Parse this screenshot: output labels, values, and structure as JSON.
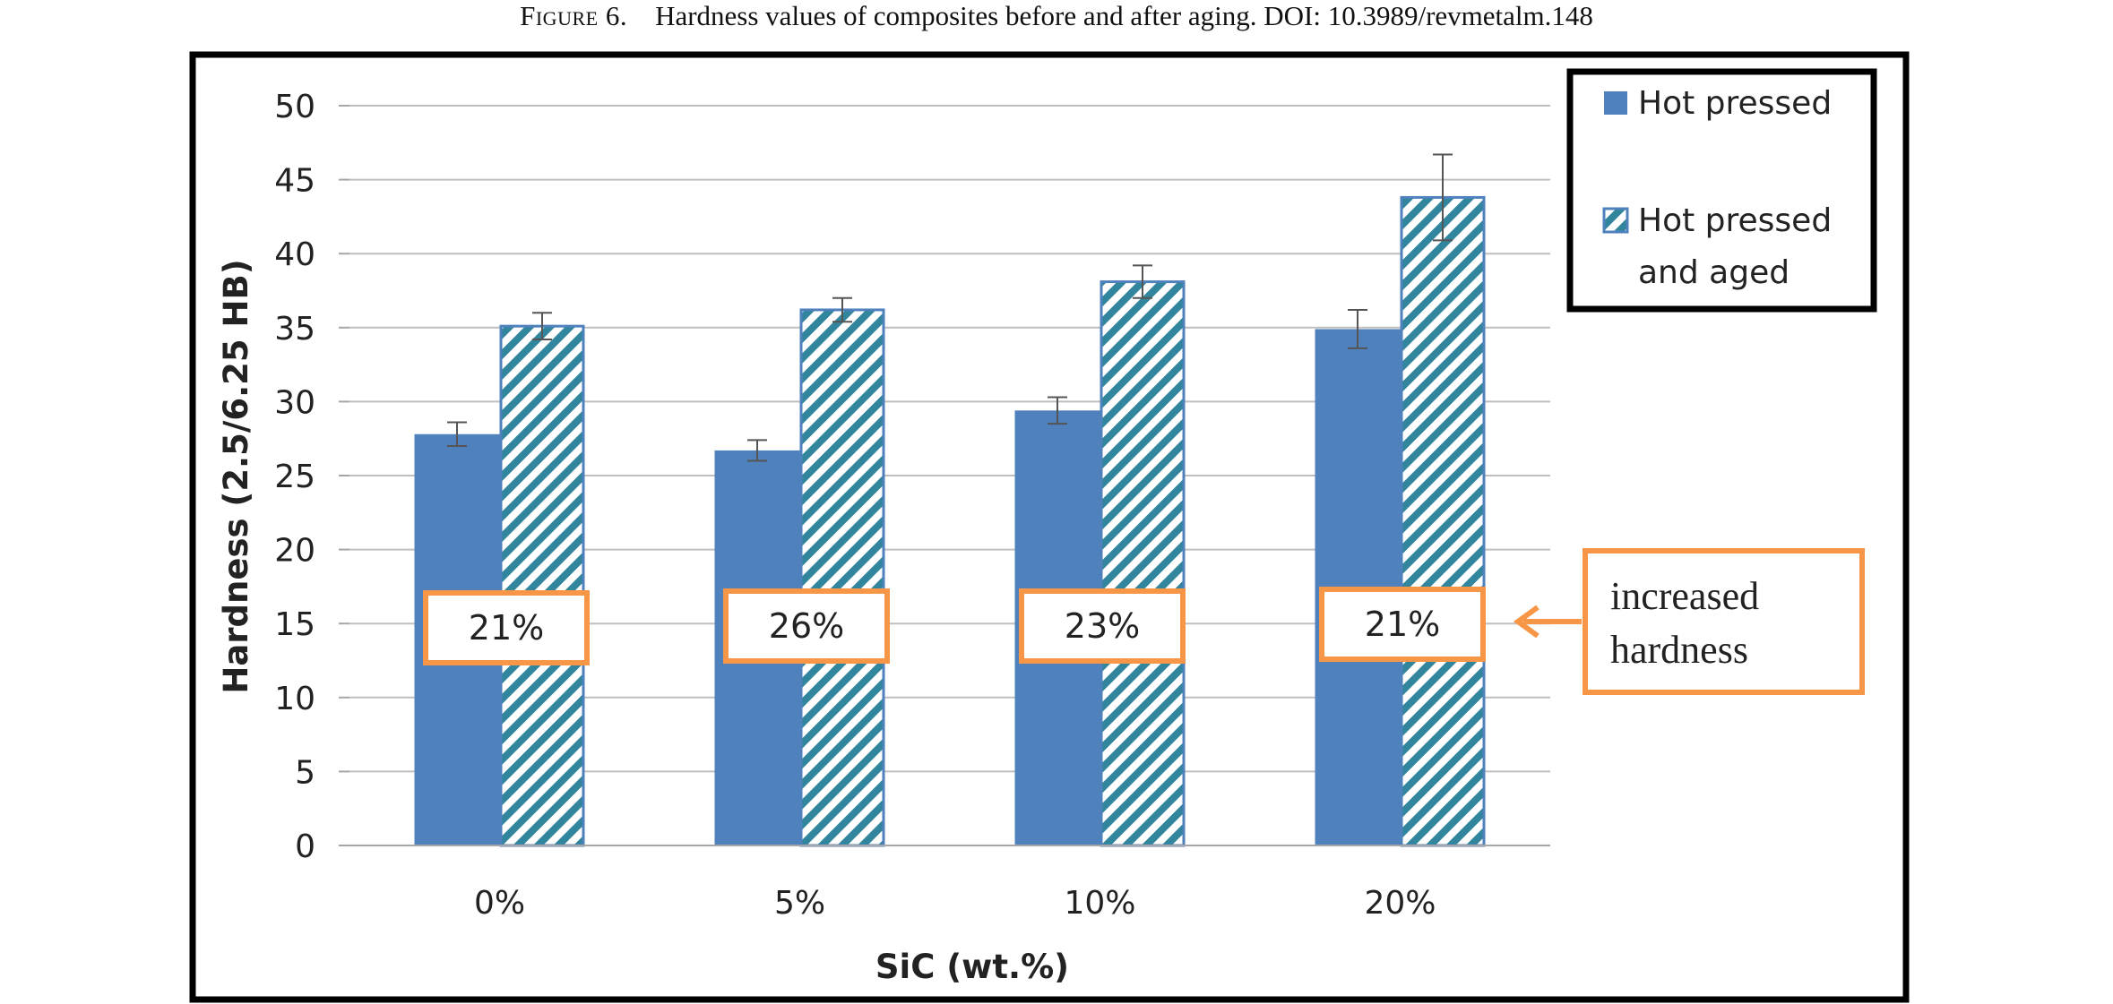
{
  "caption": {
    "label": "Figure 6.",
    "text": "Hardness values of composites before and after aging. DOI: 10.3989/revmetalm.148"
  },
  "chart_data": {
    "type": "bar",
    "xlabel": "SiC (wt.%)",
    "ylabel": "Hardness (2.5/6.25 HB)",
    "ylim": [
      0,
      50
    ],
    "yticks": [
      0,
      5,
      10,
      15,
      20,
      25,
      30,
      35,
      40,
      45,
      50
    ],
    "categories": [
      "0%",
      "5%",
      "10%",
      "20%"
    ],
    "grid": true,
    "legend_position": "top-right",
    "series": [
      {
        "name": "Hot pressed",
        "values": [
          27.8,
          26.7,
          29.4,
          34.9
        ],
        "error": [
          0.8,
          0.7,
          0.9,
          1.3
        ],
        "color": "#4f81bd",
        "style": "solid"
      },
      {
        "name": "Hot pressed and aged",
        "values": [
          35.1,
          36.2,
          38.1,
          43.8
        ],
        "error": [
          0.9,
          0.8,
          1.1,
          2.9
        ],
        "color": "#31859c",
        "style": "hatched"
      }
    ],
    "annotations": {
      "increase_labels": [
        "21%",
        "26%",
        "23%",
        "21%"
      ],
      "callout_text": "increased hardness",
      "annotation_color": "#f79646"
    }
  }
}
